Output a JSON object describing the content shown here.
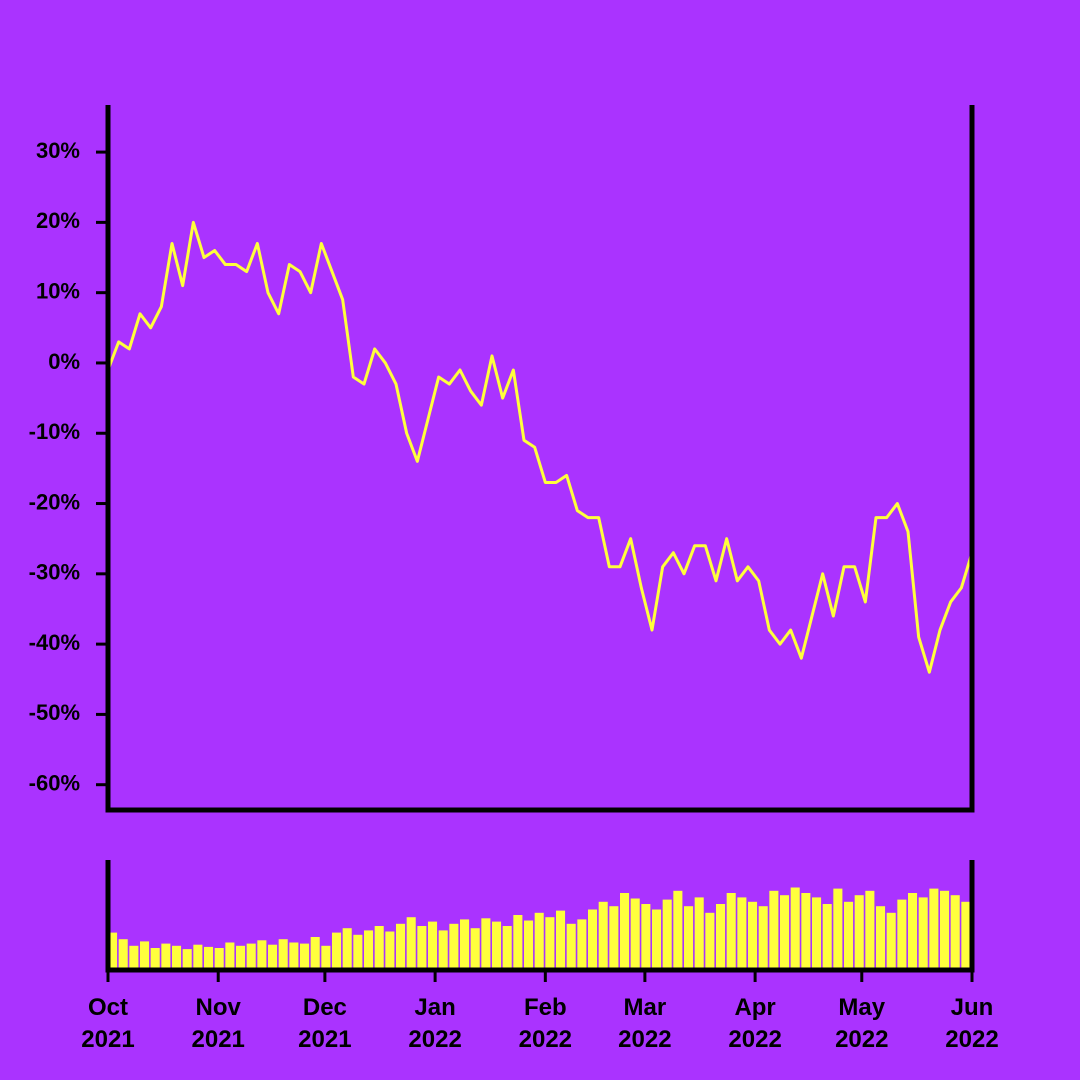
{
  "chart_data": [
    {
      "type": "line",
      "color": "#ffff3c",
      "x": [
        0,
        3,
        6,
        9,
        12,
        15,
        18,
        21,
        24,
        27,
        30,
        33,
        36,
        39,
        42,
        45,
        48,
        51,
        54,
        57,
        60,
        63,
        66,
        69,
        72,
        75,
        78,
        81,
        84,
        87,
        90,
        93,
        96,
        99,
        102,
        105,
        108,
        111,
        114,
        117,
        120,
        123,
        126,
        129,
        132,
        135,
        138,
        141,
        144,
        147,
        150,
        153,
        156,
        159,
        162,
        165,
        168,
        171,
        174,
        177,
        180,
        183,
        186,
        189,
        192,
        195,
        198,
        201,
        204,
        207,
        210,
        213,
        216,
        219,
        222,
        225,
        228,
        231,
        234,
        237,
        240,
        243
      ],
      "values": [
        -1,
        3,
        2,
        7,
        5,
        8,
        17,
        11,
        20,
        15,
        16,
        14,
        14,
        13,
        17,
        10,
        7,
        14,
        13,
        10,
        17,
        13,
        9,
        -2,
        -3,
        2,
        0,
        -3,
        -10,
        -14,
        -8,
        -2,
        -3,
        -1,
        -4,
        -6,
        1,
        -5,
        -1,
        -11,
        -12,
        -17,
        -17,
        -16,
        -21,
        -22,
        -22,
        -29,
        -29,
        -25,
        -32,
        -38,
        -29,
        -27,
        -30,
        -26,
        -26,
        -31,
        -25,
        -31,
        -29,
        -31,
        -38,
        -40,
        -38,
        -42,
        -36,
        -30,
        -36,
        -29,
        -29,
        -34,
        -22,
        -22,
        -20,
        -24,
        -39,
        -44,
        -38,
        -34,
        -32,
        -27
      ],
      "xlim": [
        0,
        243
      ],
      "ylim": [
        -63.6,
        36.7
      ],
      "yticks": [
        {
          "value": 30,
          "label": "30%"
        },
        {
          "value": 20,
          "label": "20%"
        },
        {
          "value": 10,
          "label": "10%"
        },
        {
          "value": 0,
          "label": "0%"
        },
        {
          "value": -10,
          "label": "-10%"
        },
        {
          "value": -20,
          "label": "-20%"
        },
        {
          "value": -30,
          "label": "-30%"
        },
        {
          "value": -40,
          "label": "-40%"
        },
        {
          "value": -50,
          "label": "-50%"
        },
        {
          "value": -60,
          "label": "-60%"
        }
      ]
    },
    {
      "type": "bar",
      "color": "#ffff3c",
      "x": [
        0,
        3,
        6,
        9,
        12,
        15,
        18,
        21,
        24,
        27,
        30,
        33,
        36,
        39,
        42,
        45,
        48,
        51,
        54,
        57,
        60,
        63,
        66,
        69,
        72,
        75,
        78,
        81,
        84,
        87,
        90,
        93,
        96,
        99,
        102,
        105,
        108,
        111,
        114,
        117,
        120,
        123,
        126,
        129,
        132,
        135,
        138,
        141,
        144,
        147,
        150,
        153,
        156,
        159,
        162,
        165,
        168,
        171,
        174,
        177,
        180,
        183,
        186,
        189,
        192,
        195,
        198,
        201,
        204,
        207,
        210,
        213,
        216,
        219,
        222,
        225,
        228,
        231,
        234,
        237,
        240
      ],
      "values": [
        34,
        28,
        22,
        26,
        20,
        24,
        22,
        19,
        23,
        21,
        20,
        25,
        22,
        24,
        27,
        23,
        28,
        25,
        24,
        30,
        22,
        34,
        38,
        32,
        36,
        40,
        35,
        42,
        48,
        40,
        44,
        36,
        42,
        46,
        38,
        47,
        44,
        40,
        50,
        45,
        52,
        48,
        54,
        42,
        46,
        55,
        62,
        58,
        70,
        65,
        60,
        55,
        64,
        72,
        58,
        66,
        52,
        60,
        70,
        66,
        62,
        58,
        72,
        68,
        75,
        70,
        66,
        60,
        74,
        62,
        68,
        72,
        58,
        52,
        64,
        70,
        66,
        74,
        72,
        68,
        62
      ],
      "xlim": [
        0,
        243
      ],
      "ylim": [
        0,
        100
      ],
      "xticks": [
        {
          "value": 0,
          "label": "Oct 2021"
        },
        {
          "value": 31,
          "label": "Nov 2021"
        },
        {
          "value": 61,
          "label": "Dec 2021"
        },
        {
          "value": 92,
          "label": "Jan 2022"
        },
        {
          "value": 123,
          "label": "Feb 2022"
        },
        {
          "value": 151,
          "label": "Mar 2022"
        },
        {
          "value": 182,
          "label": "Apr 2022"
        },
        {
          "value": 212,
          "label": "May 2022"
        },
        {
          "value": 243,
          "label": "Jun 2022"
        }
      ]
    }
  ]
}
